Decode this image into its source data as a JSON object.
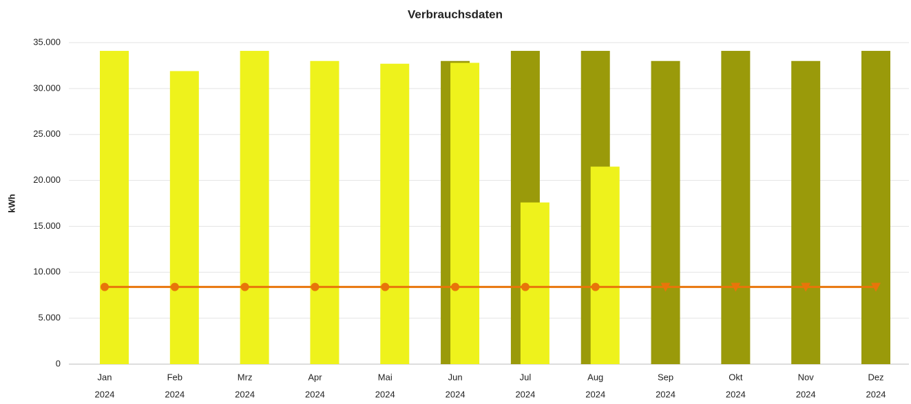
{
  "chart_data": {
    "type": "bar",
    "title": "Verbrauchsdaten",
    "y_label": "kWh",
    "categories": [
      [
        "Jan",
        "2024"
      ],
      [
        "Feb",
        "2024"
      ],
      [
        "Mrz",
        "2024"
      ],
      [
        "Apr",
        "2024"
      ],
      [
        "Mai",
        "2024"
      ],
      [
        "Jun",
        "2024"
      ],
      [
        "Jul",
        "2024"
      ],
      [
        "Aug",
        "2024"
      ],
      [
        "Sep",
        "2024"
      ],
      [
        "Okt",
        "2024"
      ],
      [
        "Nov",
        "2024"
      ],
      [
        "Dez",
        "2024"
      ]
    ],
    "series": [
      {
        "type": "bar",
        "color": "#9a9a0a",
        "offset": 0,
        "values": [
          null,
          null,
          null,
          null,
          null,
          33000,
          34100,
          34100,
          33000,
          34100,
          33000,
          34100
        ]
      },
      {
        "type": "bar",
        "color": "#eef21c",
        "offset": 1,
        "values": [
          34100,
          31900,
          34100,
          33000,
          32700,
          32800,
          17600,
          21500,
          null,
          null,
          null,
          null
        ]
      },
      {
        "type": "line",
        "color": "#e8750a",
        "values": [
          8400,
          8400,
          8400,
          8400,
          8400,
          8400,
          8400,
          8400,
          8400,
          8400,
          8400,
          8400
        ],
        "markers": [
          "circle",
          "circle",
          "circle",
          "circle",
          "circle",
          "circle",
          "circle",
          "circle",
          "triangle",
          "triangle",
          "triangle",
          "triangle"
        ]
      }
    ],
    "ylim": [
      0,
      35000
    ],
    "yticks": [
      0,
      {
        "value": 5000,
        "label": "5.000"
      },
      {
        "value": 10000,
        "label": "10.000"
      },
      {
        "value": 15000,
        "label": "15.000"
      },
      {
        "value": 20000,
        "label": "20.000"
      },
      {
        "value": 25000,
        "label": "25.000"
      },
      {
        "value": 30000,
        "label": "30.000"
      },
      {
        "value": 35000,
        "label": "35.000"
      }
    ],
    "grid": true
  }
}
